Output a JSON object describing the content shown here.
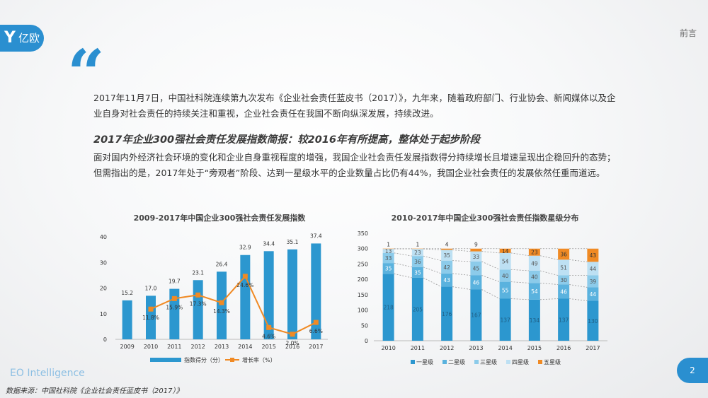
{
  "header": {
    "logo_text": "亿欧",
    "section": "前言"
  },
  "intro": {
    "paragraph1": "2017年11月7日，中国社科院连续第九次发布《企业社会责任蓝皮书（2017）》，九年来，随着政府部门、行业协会、新闻媒体以及企业自身对社会责任的持续关注和重视，企业社会责任在我国不断向纵深发展，持续改进。",
    "headline": "2017年企业300强社会责任发展指数简报：较2016年有所提高，整体处于起步阶段",
    "paragraph2": "面对国内外经济社会环境的变化和企业自身重视程度的增强，我国企业社会责任发展指数得分持续增长且增速呈现出企稳回升的态势；但需指出的是，2017年处于“旁观者”阶段、达到一星级水平的企业数量占比仍有44%，我国企业社会责任的发展依然任重而道远。"
  },
  "footer": {
    "brand": "EO Intelligence",
    "source": "数据来源：中国社科院《企业社会责任蓝皮书（2017）》",
    "page": "2"
  },
  "colors": {
    "accent": "#2a8fd0",
    "bar": "#2c97cf",
    "line": "#f08a24",
    "star1": "#2c97cf",
    "star2": "#5ab2de",
    "star3": "#8ccbea",
    "star4": "#bde0f3",
    "star5": "#f08a24"
  },
  "chart_data": [
    {
      "type": "bar",
      "title": "2009-2017年中国企业300强社会责任发展指数",
      "categories": [
        "2009",
        "2010",
        "2011",
        "2012",
        "2013",
        "2014",
        "2015",
        "2016",
        "2017"
      ],
      "ylim": [
        0,
        40
      ],
      "yticks": [
        0,
        10,
        20,
        30,
        40
      ],
      "series": [
        {
          "name": "指数得分（分）",
          "type": "bar",
          "values": [
            15.2,
            17.0,
            19.7,
            23.1,
            26.4,
            32.9,
            34.4,
            35.1,
            37.4
          ],
          "labels": [
            "15.2",
            "17.0",
            "19.7",
            "23.1",
            "26.4",
            "32.9",
            "34.4",
            "35.1",
            "37.4"
          ]
        },
        {
          "name": "增长率（%）",
          "type": "line",
          "values": [
            null,
            11.8,
            15.9,
            17.3,
            14.3,
            24.6,
            4.6,
            2.0,
            6.6
          ],
          "labels": [
            "",
            "11.8%",
            "15.9%",
            "17.3%",
            "14.3%",
            "24.6%",
            "4.6%",
            "2.0%",
            "6.6%"
          ]
        }
      ]
    },
    {
      "type": "bar",
      "stacked": true,
      "title": "2010-2017年中国企业300强社会责任指数星级分布",
      "categories": [
        "2010",
        "2011",
        "2012",
        "2013",
        "2014",
        "2015",
        "2016",
        "2017"
      ],
      "ylim": [
        0,
        350
      ],
      "yticks": [
        0,
        50,
        100,
        150,
        200,
        250,
        300,
        350
      ],
      "series": [
        {
          "name": "一星级",
          "values": [
            218,
            205,
            176,
            167,
            137,
            134,
            137,
            130
          ]
        },
        {
          "name": "二星级",
          "values": [
            35,
            35,
            43,
            46,
            55,
            54,
            46,
            44
          ]
        },
        {
          "name": "三星级",
          "values": [
            33,
            36,
            42,
            45,
            40,
            40,
            30,
            39
          ]
        },
        {
          "name": "四星级",
          "values": [
            13,
            23,
            35,
            33,
            54,
            49,
            51,
            44
          ]
        },
        {
          "name": "五星级",
          "values": [
            1,
            1,
            4,
            9,
            14,
            23,
            36,
            43
          ]
        }
      ]
    }
  ]
}
